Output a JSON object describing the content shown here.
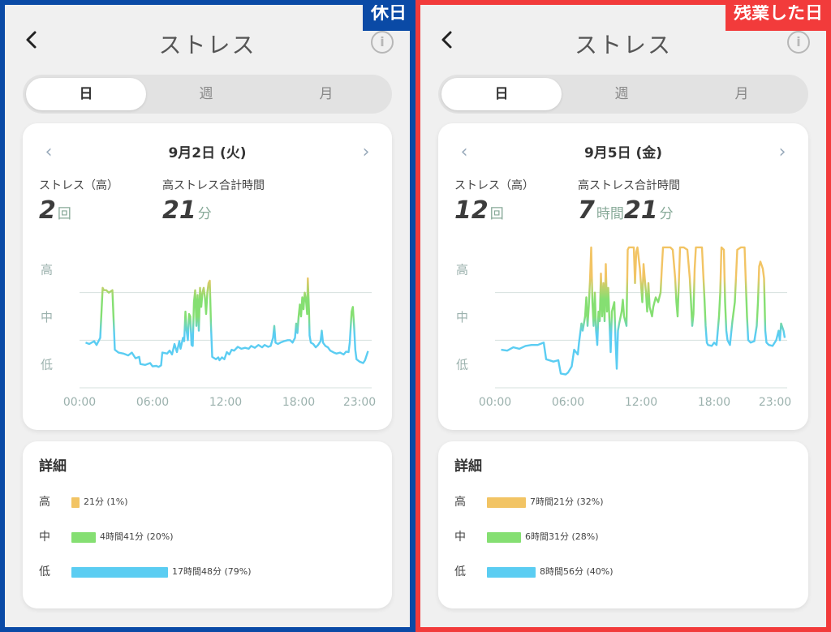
{
  "colors": {
    "high": "#f2c464",
    "mid": "#85df72",
    "low": "#5bcdf2",
    "left_border": "#0a4aa6",
    "right_border": "#f23b3b"
  },
  "panels": [
    {
      "tag": "休日",
      "title": "ストレス",
      "tabs": [
        "日",
        "週",
        "月"
      ],
      "active_tab": 0,
      "date": "9月2日 (火)",
      "stress_count_label": "ストレス（高）",
      "stress_count_value": "2",
      "stress_count_unit": "回",
      "high_total_label": "高ストレス合計時間",
      "high_total_parts": [
        {
          "num": "21",
          "unit": "分"
        }
      ],
      "y_levels": [
        "高",
        "中",
        "低"
      ],
      "x_ticks": [
        "00:00",
        "06:00",
        "12:00",
        "18:00",
        "23:00"
      ],
      "detail_title": "詳細",
      "details": [
        {
          "level": "高",
          "text": "21分 (1%)",
          "fraction": 0.01
        },
        {
          "level": "中",
          "text": "4時間41分 (20%)",
          "fraction": 0.2
        },
        {
          "level": "低",
          "text": "17時間48分 (79%)",
          "fraction": 0.79
        }
      ],
      "chart_data": {
        "type": "line",
        "x_range": [
          0,
          24
        ],
        "y_range": [
          0,
          3
        ],
        "points": [
          [
            0.5,
            0.95
          ],
          [
            0.8,
            0.92
          ],
          [
            1.2,
            0.98
          ],
          [
            1.4,
            0.9
          ],
          [
            1.7,
            1.05
          ],
          [
            1.9,
            2.1
          ],
          [
            2.0,
            2.05
          ],
          [
            2.2,
            2.05
          ],
          [
            2.4,
            2.0
          ],
          [
            2.7,
            2.05
          ],
          [
            2.9,
            0.8
          ],
          [
            3.2,
            0.74
          ],
          [
            3.6,
            0.72
          ],
          [
            4.0,
            0.68
          ],
          [
            4.3,
            0.74
          ],
          [
            4.6,
            0.62
          ],
          [
            4.9,
            0.65
          ],
          [
            5.0,
            0.5
          ],
          [
            5.4,
            0.48
          ],
          [
            5.8,
            0.52
          ],
          [
            6.0,
            0.45
          ],
          [
            6.3,
            0.46
          ],
          [
            6.5,
            0.44
          ],
          [
            6.7,
            0.47
          ],
          [
            6.8,
            0.74
          ],
          [
            7.2,
            0.72
          ],
          [
            7.4,
            0.78
          ],
          [
            7.6,
            0.7
          ],
          [
            7.8,
            0.92
          ],
          [
            8.0,
            0.75
          ],
          [
            8.2,
            0.98
          ],
          [
            8.3,
            0.82
          ],
          [
            8.5,
            1.05
          ],
          [
            8.6,
            0.98
          ],
          [
            8.7,
            1.6
          ],
          [
            8.8,
            1.2
          ],
          [
            8.9,
            1.0
          ],
          [
            9.0,
            1.55
          ],
          [
            9.1,
            1.5
          ],
          [
            9.2,
            0.9
          ],
          [
            9.3,
            0.88
          ],
          [
            9.4,
            1.8
          ],
          [
            9.5,
            2.05
          ],
          [
            9.6,
            1.3
          ],
          [
            9.7,
            1.95
          ],
          [
            9.8,
            1.2
          ],
          [
            9.9,
            2.1
          ],
          [
            10.0,
            1.7
          ],
          [
            10.1,
            2.0
          ],
          [
            10.2,
            2.1
          ],
          [
            10.3,
            1.9
          ],
          [
            10.4,
            1.55
          ],
          [
            10.5,
            2.0
          ],
          [
            10.6,
            2.2
          ],
          [
            10.7,
            2.25
          ],
          [
            10.8,
            1.3
          ],
          [
            10.9,
            0.65
          ],
          [
            11.2,
            0.6
          ],
          [
            11.4,
            0.64
          ],
          [
            11.5,
            0.58
          ],
          [
            11.7,
            0.64
          ],
          [
            11.9,
            0.6
          ],
          [
            12.1,
            0.75
          ],
          [
            12.3,
            0.7
          ],
          [
            12.5,
            0.8
          ],
          [
            12.7,
            0.78
          ],
          [
            13.0,
            0.86
          ],
          [
            13.3,
            0.82
          ],
          [
            13.6,
            0.84
          ],
          [
            13.9,
            0.82
          ],
          [
            14.1,
            0.88
          ],
          [
            14.4,
            0.84
          ],
          [
            14.7,
            0.9
          ],
          [
            15.0,
            0.85
          ],
          [
            15.2,
            0.9
          ],
          [
            15.5,
            0.86
          ],
          [
            15.7,
            0.88
          ],
          [
            15.9,
            1.05
          ],
          [
            16.0,
            1.3
          ],
          [
            16.1,
            0.95
          ],
          [
            16.3,
            0.92
          ],
          [
            16.5,
            0.95
          ],
          [
            16.8,
            0.98
          ],
          [
            17.1,
            1.0
          ],
          [
            17.3,
            1.0
          ],
          [
            17.5,
            0.95
          ],
          [
            17.7,
            1.05
          ],
          [
            17.8,
            1.35
          ],
          [
            17.9,
            1.15
          ],
          [
            18.0,
            1.5
          ],
          [
            18.1,
            1.75
          ],
          [
            18.2,
            1.5
          ],
          [
            18.3,
            1.9
          ],
          [
            18.4,
            1.65
          ],
          [
            18.5,
            2.0
          ],
          [
            18.6,
            1.85
          ],
          [
            18.7,
            1.55
          ],
          [
            18.75,
            2.3
          ],
          [
            18.85,
            1.6
          ],
          [
            18.9,
            1.1
          ],
          [
            19.0,
            0.95
          ],
          [
            19.2,
            0.92
          ],
          [
            19.4,
            0.85
          ],
          [
            19.6,
            0.9
          ],
          [
            19.8,
            0.98
          ],
          [
            19.9,
            1.2
          ],
          [
            20.0,
            0.95
          ],
          [
            20.2,
            0.88
          ],
          [
            20.4,
            0.85
          ],
          [
            20.6,
            0.78
          ],
          [
            20.9,
            0.74
          ],
          [
            21.1,
            0.72
          ],
          [
            21.4,
            0.74
          ],
          [
            21.7,
            0.7
          ],
          [
            21.9,
            0.76
          ],
          [
            22.1,
            0.75
          ],
          [
            22.2,
            0.95
          ],
          [
            22.35,
            1.6
          ],
          [
            22.45,
            1.7
          ],
          [
            22.55,
            1.3
          ],
          [
            22.65,
            0.8
          ],
          [
            22.75,
            0.6
          ],
          [
            23.0,
            0.55
          ],
          [
            23.3,
            0.52
          ],
          [
            23.45,
            0.58
          ],
          [
            23.7,
            0.77
          ]
        ]
      }
    },
    {
      "tag": "残業した日",
      "title": "ストレス",
      "tabs": [
        "日",
        "週",
        "月"
      ],
      "active_tab": 0,
      "date": "9月5日 (金)",
      "stress_count_label": "ストレス（高）",
      "stress_count_value": "12",
      "stress_count_unit": "回",
      "high_total_label": "高ストレス合計時間",
      "high_total_parts": [
        {
          "num": "7",
          "unit": "時間"
        },
        {
          "num": "21",
          "unit": "分"
        }
      ],
      "y_levels": [
        "高",
        "中",
        "低"
      ],
      "x_ticks": [
        "00:00",
        "06:00",
        "12:00",
        "18:00",
        "23:00"
      ],
      "detail_title": "詳細",
      "details": [
        {
          "level": "高",
          "text": "7時間21分 (32%)",
          "fraction": 0.32
        },
        {
          "level": "中",
          "text": "6時間31分 (28%)",
          "fraction": 0.28
        },
        {
          "level": "低",
          "text": "8時間56分 (40%)",
          "fraction": 0.4
        }
      ],
      "chart_data": {
        "type": "line",
        "x_range": [
          0,
          24
        ],
        "y_range": [
          0,
          3
        ],
        "points": [
          [
            0.5,
            0.8
          ],
          [
            1.0,
            0.78
          ],
          [
            1.5,
            0.85
          ],
          [
            2.0,
            0.82
          ],
          [
            2.5,
            0.88
          ],
          [
            3.0,
            0.9
          ],
          [
            3.5,
            0.9
          ],
          [
            4.0,
            0.95
          ],
          [
            4.2,
            0.6
          ],
          [
            4.8,
            0.55
          ],
          [
            5.2,
            0.58
          ],
          [
            5.4,
            0.3
          ],
          [
            5.8,
            0.28
          ],
          [
            6.0,
            0.32
          ],
          [
            6.3,
            0.45
          ],
          [
            6.5,
            0.8
          ],
          [
            6.8,
            0.7
          ],
          [
            6.9,
            0.95
          ],
          [
            7.1,
            1.35
          ],
          [
            7.2,
            1.2
          ],
          [
            7.4,
            1.5
          ],
          [
            7.5,
            1.9
          ],
          [
            7.6,
            1.3
          ],
          [
            7.7,
            1.7
          ],
          [
            7.8,
            2.25
          ],
          [
            7.9,
            2.95
          ],
          [
            8.0,
            1.8
          ],
          [
            8.1,
            1.3
          ],
          [
            8.2,
            2.0
          ],
          [
            8.3,
            1.2
          ],
          [
            8.4,
            0.9
          ],
          [
            8.5,
            1.6
          ],
          [
            8.6,
            1.4
          ],
          [
            8.7,
            2.4
          ],
          [
            8.8,
            1.5
          ],
          [
            8.9,
            2.2
          ],
          [
            9.0,
            1.4
          ],
          [
            9.1,
            2.6
          ],
          [
            9.2,
            1.6
          ],
          [
            9.3,
            2.1
          ],
          [
            9.4,
            1.4
          ],
          [
            9.5,
            0.75
          ],
          [
            9.6,
            1.6
          ],
          [
            9.8,
            1.8
          ],
          [
            9.9,
            1.0
          ],
          [
            10.0,
            0.4
          ],
          [
            10.1,
            1.2
          ],
          [
            10.2,
            1.35
          ],
          [
            10.4,
            1.6
          ],
          [
            10.5,
            1.85
          ],
          [
            10.6,
            1.5
          ],
          [
            10.8,
            1.3
          ],
          [
            10.9,
            2.9
          ],
          [
            11.0,
            2.95
          ],
          [
            11.2,
            2.95
          ],
          [
            11.4,
            2.95
          ],
          [
            11.5,
            2.2
          ],
          [
            11.6,
            2.85
          ],
          [
            11.7,
            2.95
          ],
          [
            11.9,
            2.5
          ],
          [
            12.1,
            1.8
          ],
          [
            12.2,
            2.6
          ],
          [
            12.4,
            2.0
          ],
          [
            12.5,
            1.6
          ],
          [
            12.6,
            2.2
          ],
          [
            12.7,
            1.7
          ],
          [
            12.9,
            1.5
          ],
          [
            13.0,
            1.7
          ],
          [
            13.2,
            1.9
          ],
          [
            13.4,
            1.8
          ],
          [
            13.6,
            2.0
          ],
          [
            13.7,
            2.5
          ],
          [
            13.8,
            2.95
          ],
          [
            14.1,
            2.95
          ],
          [
            14.4,
            2.95
          ],
          [
            14.6,
            2.9
          ],
          [
            14.8,
            2.3
          ],
          [
            14.9,
            1.8
          ],
          [
            15.0,
            1.5
          ],
          [
            15.1,
            2.2
          ],
          [
            15.2,
            2.95
          ],
          [
            15.5,
            2.95
          ],
          [
            15.8,
            2.9
          ],
          [
            16.0,
            2.3
          ],
          [
            16.1,
            1.8
          ],
          [
            16.2,
            1.3
          ],
          [
            16.3,
            1.55
          ],
          [
            16.4,
            2.5
          ],
          [
            16.5,
            2.95
          ],
          [
            16.8,
            2.95
          ],
          [
            17.0,
            2.95
          ],
          [
            17.2,
            1.9
          ],
          [
            17.3,
            1.3
          ],
          [
            17.4,
            0.95
          ],
          [
            17.5,
            0.9
          ],
          [
            17.8,
            0.88
          ],
          [
            18.0,
            0.95
          ],
          [
            18.2,
            0.9
          ],
          [
            18.4,
            1.5
          ],
          [
            18.5,
            2.0
          ],
          [
            18.6,
            2.95
          ],
          [
            18.8,
            2.9
          ],
          [
            18.9,
            1.8
          ],
          [
            19.0,
            1.2
          ],
          [
            19.1,
            1.0
          ],
          [
            19.3,
            0.9
          ],
          [
            19.5,
            1.4
          ],
          [
            19.7,
            1.8
          ],
          [
            19.9,
            2.9
          ],
          [
            20.2,
            2.95
          ],
          [
            20.5,
            2.95
          ],
          [
            20.7,
            1.5
          ],
          [
            20.8,
            1.0
          ],
          [
            21.0,
            0.95
          ],
          [
            21.3,
            0.98
          ],
          [
            21.5,
            1.3
          ],
          [
            21.6,
            1.8
          ],
          [
            21.7,
            2.55
          ],
          [
            21.8,
            2.65
          ],
          [
            22.0,
            2.5
          ],
          [
            22.1,
            2.3
          ],
          [
            22.2,
            1.2
          ],
          [
            22.3,
            0.95
          ],
          [
            22.5,
            0.9
          ],
          [
            22.8,
            0.88
          ],
          [
            23.1,
            1.0
          ],
          [
            23.3,
            1.2
          ],
          [
            23.4,
            1.0
          ],
          [
            23.5,
            1.35
          ],
          [
            23.7,
            1.2
          ],
          [
            23.8,
            1.05
          ]
        ]
      }
    }
  ]
}
